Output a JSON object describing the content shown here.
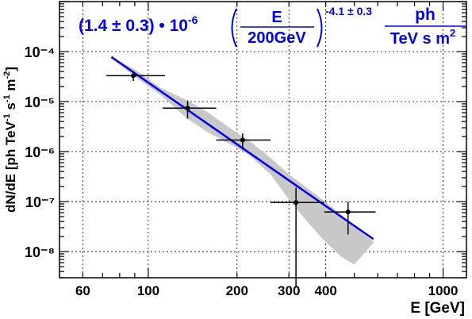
{
  "chart_data": {
    "type": "scatter",
    "title": "",
    "xlabel": "E [GeV]",
    "ylabel": "dN/dE [ph TeV-1 s-1 m-2]",
    "xscale": "log",
    "yscale": "log",
    "xlim": [
      50,
      1200
    ],
    "ylim": [
      3e-09,
      0.001
    ],
    "grid": true,
    "x_ticks": [
      60,
      100,
      200,
      300,
      400,
      1000
    ],
    "x_tick_labels": [
      "60",
      "100",
      "200",
      "300",
      "400",
      "1000"
    ],
    "y_ticks": [
      1e-08,
      1e-07,
      1e-06,
      1e-05,
      0.0001
    ],
    "y_tick_labels": [
      "10⁻⁸",
      "10⁻⁷",
      "10⁻⁶",
      "10⁻⁵",
      "10⁻⁴"
    ],
    "series": [
      {
        "kind": "points_with_errors",
        "points": [
          {
            "x": 89,
            "y": 3.3e-05,
            "xlo": 72,
            "xhi": 114,
            "ylo": 2.6e-05,
            "yhi": 4e-05
          },
          {
            "x": 136,
            "y": 7.4e-06,
            "xlo": 112,
            "xhi": 170,
            "ylo": 4.6e-06,
            "yhi": 1.05e-05
          },
          {
            "x": 209,
            "y": 1.7e-06,
            "xlo": 170,
            "xhi": 260,
            "ylo": 1.1e-06,
            "yhi": 2.3e-06
          },
          {
            "x": 317,
            "y": 9.6e-08,
            "xlo": 260,
            "xhi": 395,
            "ylo": 2e-09,
            "yhi": 1.9e-07
          },
          {
            "x": 476,
            "y": 6.2e-08,
            "xlo": 395,
            "xhi": 590,
            "ylo": 2.2e-08,
            "yhi": 1e-07
          }
        ]
      },
      {
        "kind": "fit_line",
        "color": "#0000ee",
        "normalization": 1.4e-06,
        "pivot": 200,
        "index": -4.1,
        "x": [
          75,
          580
        ]
      },
      {
        "kind": "band",
        "color": "#c8c8c8",
        "x": [
          75,
          90,
          110,
          136,
          160,
          190,
          220,
          260,
          300,
          340,
          390,
          450,
          500,
          580
        ],
        "lo": [
          7.2e-05,
          3.2e-05,
          1.35e-05,
          4.5e-06,
          2.4e-06,
          1.4e-06,
          8.5e-07,
          3.5e-07,
          1.1e-07,
          4.5e-08,
          1.8e-08,
          8e-09,
          5.5e-09,
          1.5e-08
        ],
        "hi": [
          7.8e-05,
          4.4e-05,
          1.9e-05,
          1.05e-05,
          6e-06,
          2.9e-06,
          1.65e-06,
          7.5e-07,
          3.5e-07,
          2e-07,
          1.1e-07,
          5.5e-08,
          3.2e-08,
          1.6e-08
        ]
      }
    ],
    "annotation": {
      "prefix": "(1.4 ± 0.3) • 10",
      "prefix_exp": "-6",
      "frac_num": "E",
      "frac_den": "200GeV",
      "index_exp": "-4.1 ± 0.3",
      "unit_num": "ph",
      "unit_den": "TeV s m",
      "unit_den_exp": "2",
      "color": "#0000ee"
    }
  }
}
